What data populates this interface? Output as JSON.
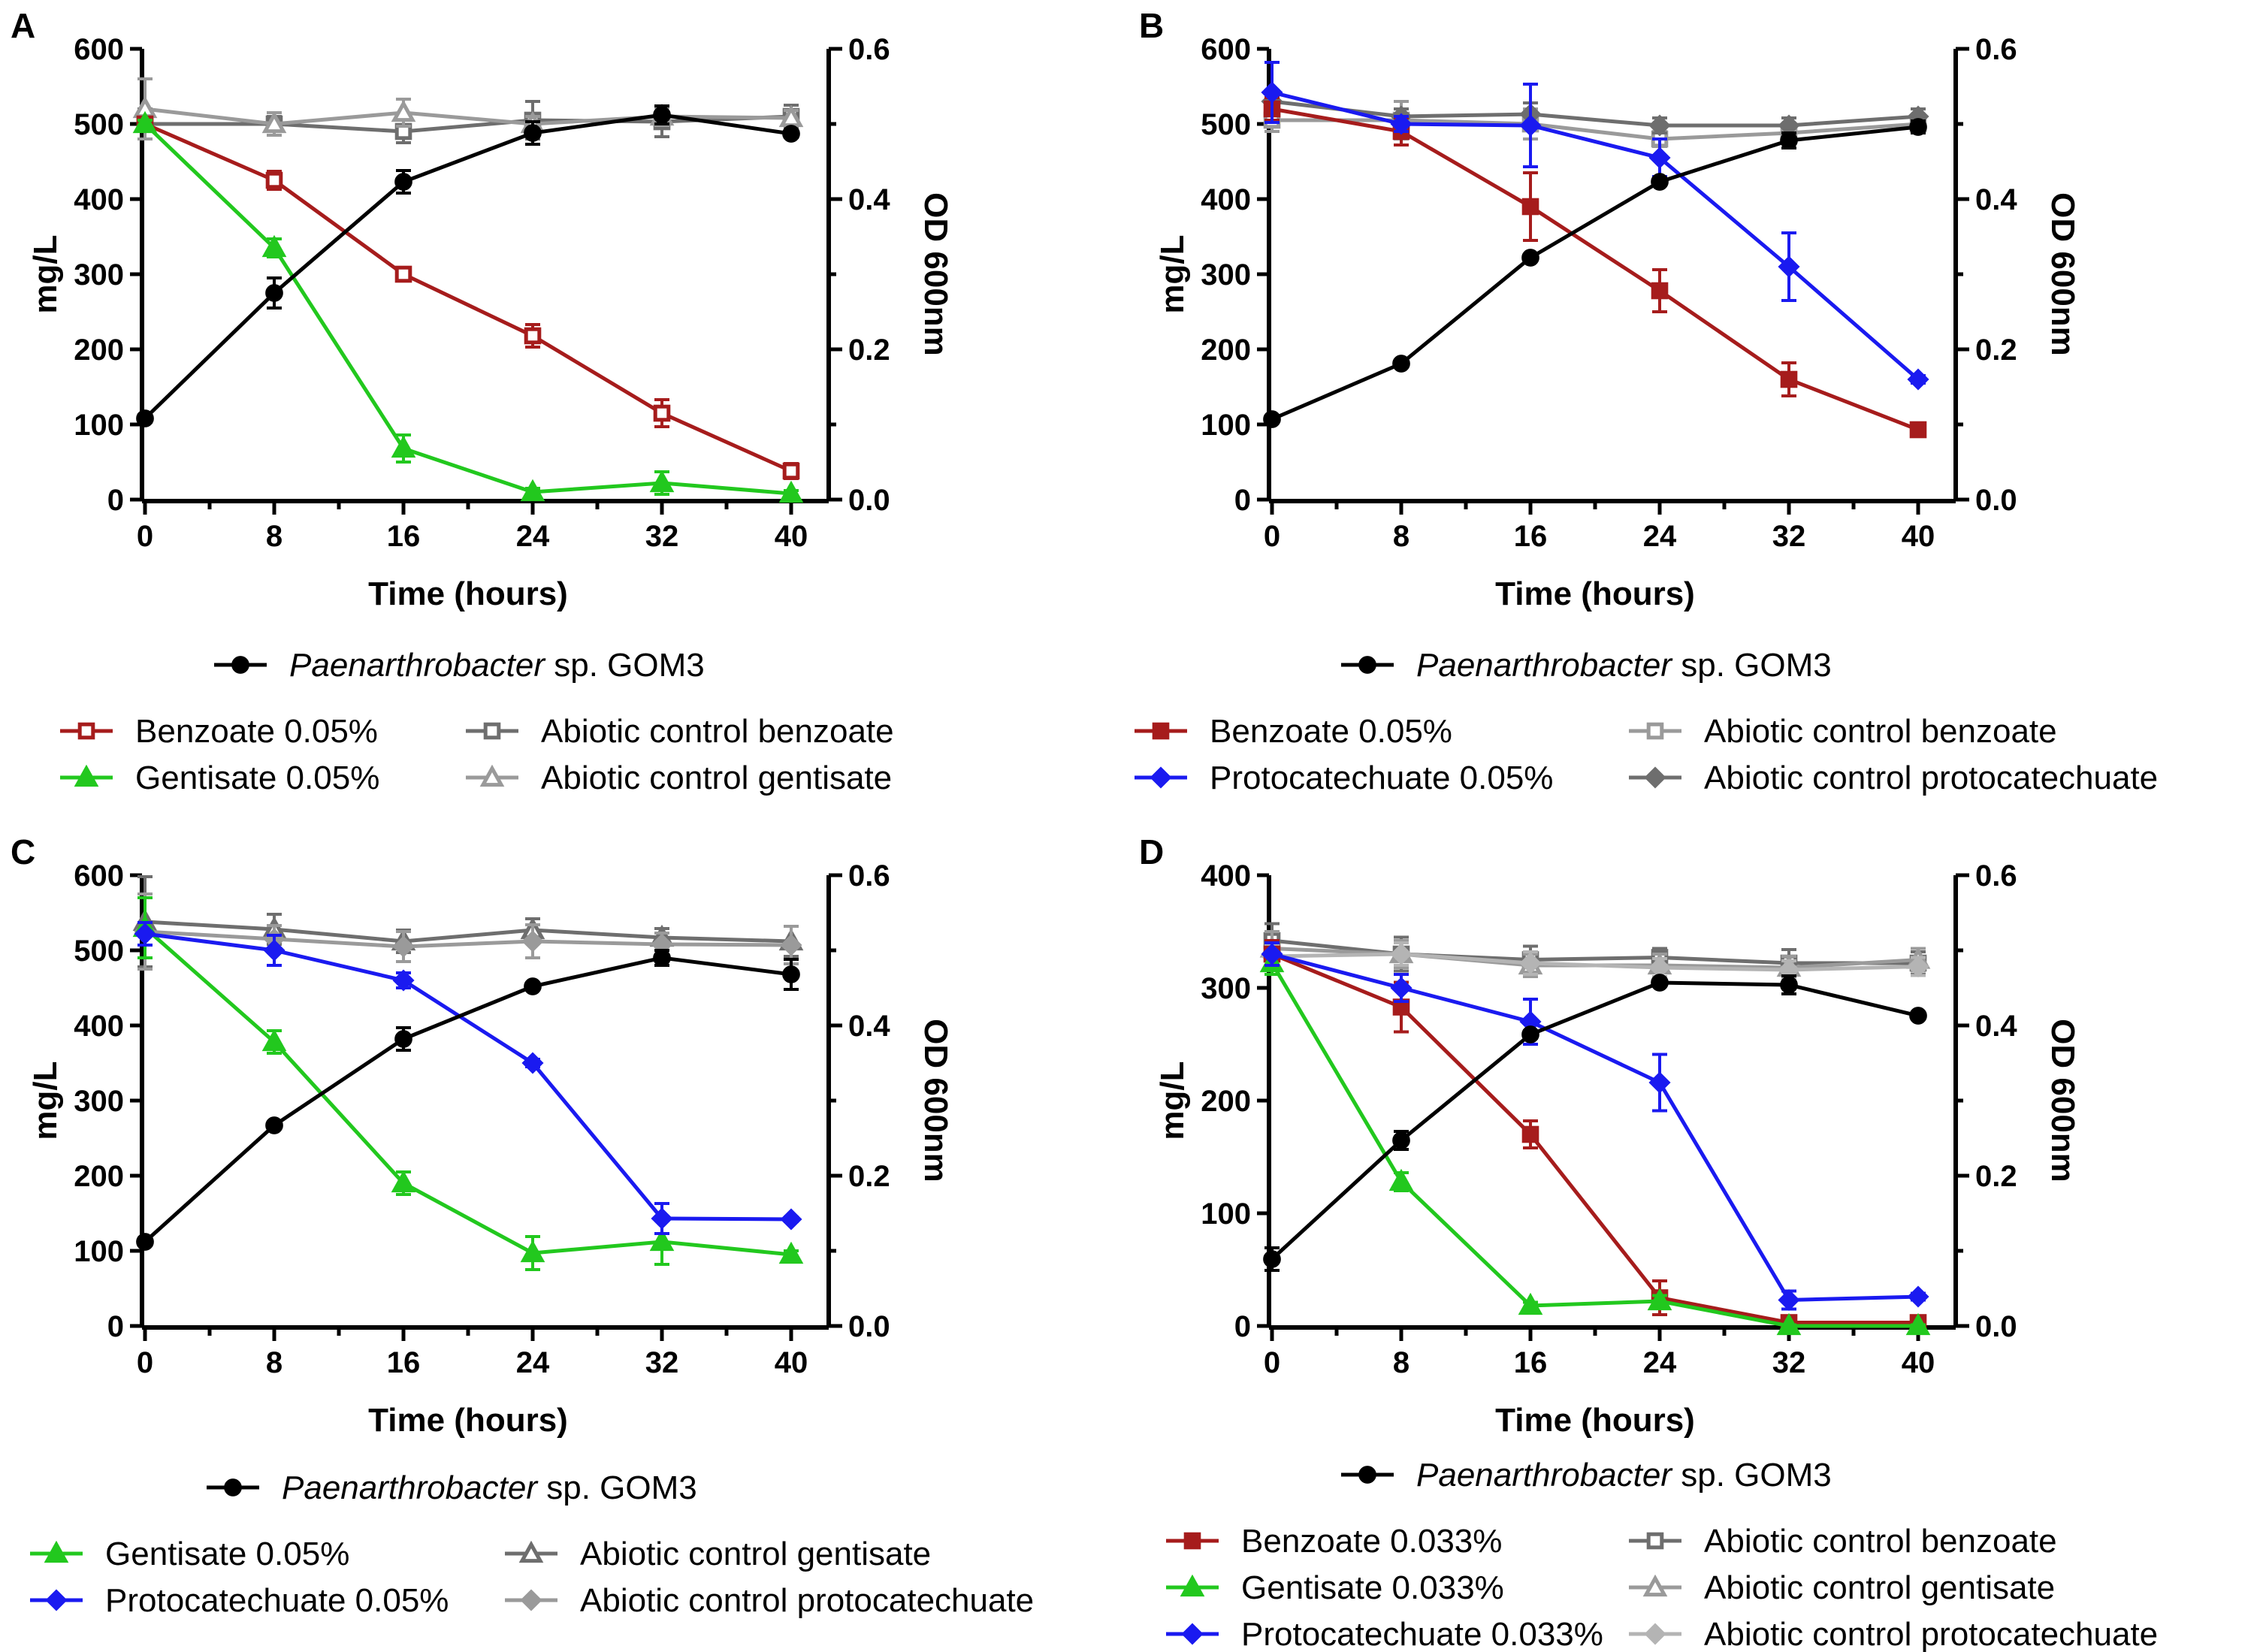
{
  "figure": {
    "panels": [
      "A",
      "B",
      "C",
      "D"
    ]
  },
  "chart_data": [
    {
      "panel": "A",
      "type": "line",
      "xlabel": "Time (hours)",
      "ylabel": "mg/L",
      "y2label": "OD 600nm",
      "x": [
        0,
        8,
        16,
        24,
        32,
        40
      ],
      "xticks": [
        "0",
        "8",
        "16",
        "24",
        "32",
        "40"
      ],
      "ylim": [
        0,
        600
      ],
      "yticks": [
        "0",
        "100",
        "200",
        "300",
        "400",
        "500",
        "600"
      ],
      "y2lim": [
        0,
        0.6
      ],
      "y2ticks": [
        "0.0",
        "0.2",
        "0.4",
        "0.6"
      ],
      "od_series": {
        "name": "Paenarthrobacter",
        "name_suffix": " sp. GOM3",
        "color": "#000000",
        "marker": "circle",
        "values": [
          0.108,
          0.275,
          0.423,
          0.488,
          0.512,
          0.487
        ],
        "err": [
          0.005,
          0.02,
          0.015,
          0.015,
          0.012,
          0.005
        ]
      },
      "series": [
        {
          "name": "Benzoate 0.05%",
          "color": "#A61C1C",
          "marker": "square-open",
          "values": [
            500,
            425,
            300,
            218,
            115,
            38
          ],
          "err": [
            8,
            12,
            5,
            15,
            18,
            10
          ]
        },
        {
          "name": "Gentisate 0.05%",
          "color": "#22C81E",
          "marker": "triangle",
          "values": [
            500,
            335,
            68,
            10,
            22,
            8
          ],
          "err": [
            5,
            12,
            18,
            5,
            15,
            4
          ]
        },
        {
          "name": "Abiotic control benzoate",
          "color": "#6E6E6E",
          "marker": "square-open",
          "values": [
            500,
            500,
            490,
            505,
            503,
            510
          ],
          "err": [
            20,
            10,
            15,
            25,
            20,
            15
          ]
        },
        {
          "name": "Abiotic control gentisate",
          "color": "#9A9A9A",
          "marker": "triangle-open",
          "values": [
            520,
            500,
            515,
            500,
            510,
            508
          ],
          "err": [
            40,
            15,
            18,
            10,
            12,
            10
          ]
        }
      ],
      "legend_rows": [
        [
          "Benzoate 0.05%",
          "Abiotic control benzoate"
        ],
        [
          "Gentisate 0.05%",
          "Abiotic control gentisate"
        ]
      ]
    },
    {
      "panel": "B",
      "type": "line",
      "xlabel": "Time (hours)",
      "ylabel": "mg/L",
      "y2label": "OD 600nm",
      "x": [
        0,
        8,
        16,
        24,
        32,
        40
      ],
      "xticks": [
        "0",
        "8",
        "16",
        "24",
        "32",
        "40"
      ],
      "ylim": [
        0,
        600
      ],
      "yticks": [
        "0",
        "100",
        "200",
        "300",
        "400",
        "500",
        "600"
      ],
      "y2lim": [
        0,
        0.6
      ],
      "y2ticks": [
        "0.0",
        "0.2",
        "0.4",
        "0.6"
      ],
      "od_series": {
        "name": "Paenarthrobacter",
        "name_suffix": " sp. GOM3",
        "color": "#000000",
        "marker": "circle",
        "values": [
          0.107,
          0.181,
          0.322,
          0.423,
          0.478,
          0.496
        ],
        "err": [
          0.003,
          0.003,
          0.003,
          0.003,
          0.01,
          0.008
        ]
      },
      "series": [
        {
          "name": "Benzoate 0.05%",
          "color": "#A61C1C",
          "marker": "square",
          "values": [
            520,
            490,
            390,
            278,
            160,
            93
          ],
          "err": [
            15,
            18,
            45,
            28,
            22,
            5
          ]
        },
        {
          "name": "Protocatechuate 0.05%",
          "color": "#1A1AF0",
          "marker": "diamond",
          "values": [
            542,
            500,
            498,
            455,
            310,
            160
          ],
          "err": [
            40,
            10,
            55,
            25,
            45,
            5
          ]
        },
        {
          "name": "Abiotic control benzoate",
          "color": "#9A9A9A",
          "marker": "square-open",
          "values": [
            505,
            505,
            500,
            480,
            488,
            500
          ],
          "err": [
            15,
            25,
            20,
            10,
            12,
            10
          ]
        },
        {
          "name": "Abiotic control protocatechuate",
          "color": "#6E6E6E",
          "marker": "diamond",
          "values": [
            530,
            510,
            513,
            498,
            498,
            510
          ],
          "err": [
            15,
            10,
            15,
            10,
            10,
            10
          ]
        }
      ],
      "legend_rows": [
        [
          "Benzoate 0.05%",
          "Abiotic control benzoate"
        ],
        [
          "Protocatechuate 0.05%",
          "Abiotic control protocatechuate"
        ]
      ]
    },
    {
      "panel": "C",
      "type": "line",
      "xlabel": "Time (hours)",
      "ylabel": "mg/L",
      "y2label": "OD 600nm",
      "x": [
        0,
        8,
        16,
        24,
        32,
        40
      ],
      "xticks": [
        "0",
        "8",
        "16",
        "24",
        "32",
        "40"
      ],
      "ylim": [
        0,
        600
      ],
      "yticks": [
        "0",
        "100",
        "200",
        "300",
        "400",
        "500",
        "600"
      ],
      "y2lim": [
        0,
        0.6
      ],
      "y2ticks": [
        "0.0",
        "0.2",
        "0.4",
        "0.6"
      ],
      "od_series": {
        "name": "Paenarthrobacter",
        "name_suffix": " sp. GOM3",
        "color": "#000000",
        "marker": "circle",
        "values": [
          0.112,
          0.267,
          0.382,
          0.452,
          0.49,
          0.468
        ],
        "err": [
          0.005,
          0.003,
          0.015,
          0.003,
          0.01,
          0.02
        ]
      },
      "series": [
        {
          "name": "Gentisate 0.05%",
          "color": "#22C81E",
          "marker": "triangle",
          "values": [
            530,
            378,
            190,
            97,
            112,
            95
          ],
          "err": [
            40,
            15,
            15,
            22,
            30,
            5
          ]
        },
        {
          "name": "Protocatechuate 0.05%",
          "color": "#1A1AF0",
          "marker": "diamond",
          "values": [
            522,
            500,
            460,
            350,
            143,
            142
          ],
          "err": [
            15,
            20,
            10,
            5,
            20,
            3
          ]
        },
        {
          "name": "Abiotic control gentisate",
          "color": "#6E6E6E",
          "marker": "triangle-open",
          "values": [
            538,
            528,
            512,
            527,
            517,
            512
          ],
          "err": [
            60,
            20,
            15,
            15,
            12,
            20
          ]
        },
        {
          "name": "Abiotic control protocatechuate",
          "color": "#9A9A9A",
          "marker": "diamond",
          "values": [
            525,
            515,
            505,
            512,
            508,
            507
          ],
          "err": [
            50,
            18,
            20,
            22,
            15,
            25
          ]
        }
      ],
      "legend_rows": [
        [
          "Gentisate 0.05%",
          "Abiotic control gentisate"
        ],
        [
          "Protocatechuate 0.05%",
          "Abiotic control protocatechuate"
        ]
      ]
    },
    {
      "panel": "D",
      "type": "line",
      "xlabel": "Time (hours)",
      "ylabel": "mg/L",
      "y2label": "OD 600nm",
      "x": [
        0,
        8,
        16,
        24,
        32,
        40
      ],
      "xticks": [
        "0",
        "8",
        "16",
        "24",
        "32",
        "40"
      ],
      "ylim": [
        0,
        400
      ],
      "yticks": [
        "0",
        "100",
        "200",
        "300",
        "400"
      ],
      "y2lim": [
        0,
        0.6
      ],
      "y2ticks": [
        "0.0",
        "0.2",
        "0.4",
        "0.6"
      ],
      "od_series": {
        "name": "Paenarthrobacter",
        "name_suffix": " sp. GOM3",
        "color": "#000000",
        "marker": "circle",
        "values": [
          0.089,
          0.247,
          0.388,
          0.457,
          0.454,
          0.413
        ],
        "err": [
          0.015,
          0.012,
          0.005,
          0.003,
          0.012,
          0.003
        ]
      },
      "series": [
        {
          "name": "Benzoate 0.033%",
          "color": "#A61C1C",
          "marker": "square",
          "values": [
            330,
            283,
            170,
            25,
            3,
            3
          ],
          "err": [
            12,
            22,
            12,
            15,
            3,
            3
          ]
        },
        {
          "name": "Gentisate 0.033%",
          "color": "#22C81E",
          "marker": "triangle",
          "values": [
            322,
            128,
            18,
            22,
            0,
            0
          ],
          "err": [
            10,
            8,
            3,
            5,
            1,
            1
          ]
        },
        {
          "name": "Protocatechuate 0.033%",
          "color": "#1A1AF0",
          "marker": "diamond",
          "values": [
            330,
            300,
            270,
            216,
            23,
            26
          ],
          "err": [
            10,
            12,
            20,
            25,
            8,
            3
          ]
        },
        {
          "name": "Abiotic control benzoate",
          "color": "#6E6E6E",
          "marker": "square-open",
          "values": [
            342,
            330,
            325,
            327,
            322,
            322
          ],
          "err": [
            15,
            15,
            12,
            8,
            12,
            10
          ]
        },
        {
          "name": "Abiotic control gentisate",
          "color": "#9A9A9A",
          "marker": "triangle-open",
          "values": [
            335,
            330,
            320,
            320,
            318,
            325
          ],
          "err": [
            15,
            12,
            10,
            10,
            10,
            10
          ]
        },
        {
          "name": "Abiotic control protocatechuate",
          "color": "#B4B4B4",
          "marker": "diamond",
          "values": [
            328,
            330,
            322,
            318,
            316,
            319
          ],
          "err": [
            10,
            10,
            10,
            8,
            8,
            8
          ]
        }
      ],
      "legend_rows": [
        [
          "Benzoate 0.033%",
          "Abiotic control benzoate"
        ],
        [
          "Gentisate 0.033%",
          "Abiotic control gentisate"
        ],
        [
          "Protocatechuate 0.033%",
          "Abiotic control protocatechuate"
        ]
      ]
    }
  ]
}
